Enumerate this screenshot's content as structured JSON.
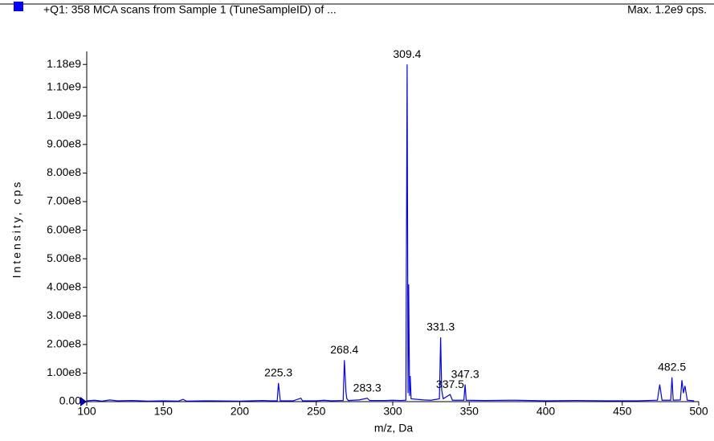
{
  "chart_data": {
    "type": "line",
    "title": "+Q1: 358 MCA scans from Sample 1 (TuneSampleID) of ...",
    "subtitle": "Max. 1.2e9 cps.",
    "x_label": "m/z, Da",
    "y_label": "Intensity, cps",
    "x": [
      100,
      105,
      110,
      115,
      120,
      130,
      140,
      150,
      160,
      163,
      165,
      180,
      200,
      215,
      220,
      224.5,
      225.3,
      226.5,
      235,
      240,
      241,
      250,
      255,
      260,
      267.6,
      268.4,
      269.4,
      270,
      271,
      278,
      283.3,
      285,
      295,
      300,
      305,
      308.6,
      309.4,
      310.0,
      310.4,
      311,
      311.4,
      312,
      320,
      325,
      330.5,
      331.3,
      332,
      333,
      337.5,
      339,
      346.5,
      347.3,
      348,
      360,
      380,
      400,
      420,
      440,
      460,
      473,
      474.5,
      476,
      481.7,
      482.5,
      483.3,
      488,
      489,
      490,
      491,
      492.5,
      497
    ],
    "series": [
      {
        "color": "#0000ff",
        "values": [
          3000000.0,
          5000000.0,
          2000000.0,
          6000000.0,
          3000000.0,
          4000000.0,
          2000000.0,
          3000000.0,
          2000000.0,
          8000000.0,
          2000000.0,
          3000000.0,
          2000000.0,
          4000000.0,
          3000000.0,
          3000000.0,
          65000000.0,
          3000000.0,
          3000000.0,
          12000000.0,
          3000000.0,
          3000000.0,
          5000000.0,
          3000000.0,
          4000000.0,
          145000000.0,
          35000000.0,
          10000000.0,
          4000000.0,
          6000000.0,
          12000000.0,
          4000000.0,
          4000000.0,
          5000000.0,
          4000000.0,
          5000000.0,
          1180000000.0,
          30000000.0,
          410000000.0,
          20000000.0,
          90000000.0,
          10000000.0,
          6000000.0,
          5000000.0,
          10000000.0,
          225000000.0,
          40000000.0,
          10000000.0,
          25000000.0,
          5000000.0,
          5000000.0,
          60000000.0,
          5000000.0,
          4000000.0,
          5000000.0,
          3000000.0,
          4000000.0,
          3000000.0,
          3000000.0,
          5000000.0,
          60000000.0,
          5000000.0,
          5000000.0,
          85000000.0,
          5000000.0,
          6000000.0,
          75000000.0,
          30000000.0,
          55000000.0,
          5000000.0,
          3000000.0
        ]
      }
    ],
    "peak_labels": [
      225.3,
      268.4,
      283.3,
      309.4,
      331.3,
      337.5,
      347.3,
      482.5
    ],
    "xlim": [
      100,
      500
    ],
    "xticks": [
      100,
      150,
      200,
      250,
      300,
      350,
      400,
      450,
      500
    ],
    "ylim": [
      0,
      1220000000.0
    ],
    "yticks": [
      {
        "value": 0,
        "label": "0.00"
      },
      {
        "value": 100000000.0,
        "label": "1.00e8"
      },
      {
        "value": 200000000.0,
        "label": "2.00e8"
      },
      {
        "value": 300000000.0,
        "label": "3.00e8"
      },
      {
        "value": 400000000.0,
        "label": "4.00e8"
      },
      {
        "value": 500000000.0,
        "label": "5.00e8"
      },
      {
        "value": 600000000.0,
        "label": "6.00e8"
      },
      {
        "value": 700000000.0,
        "label": "7.00e8"
      },
      {
        "value": 800000000.0,
        "label": "8.00e8"
      },
      {
        "value": 900000000.0,
        "label": "9.00e8"
      },
      {
        "value": 1000000000.0,
        "label": "1.00e9"
      },
      {
        "value": 1100000000.0,
        "label": "1.10e9"
      },
      {
        "value": 1180000000.0,
        "label": "1.18e9"
      }
    ]
  }
}
